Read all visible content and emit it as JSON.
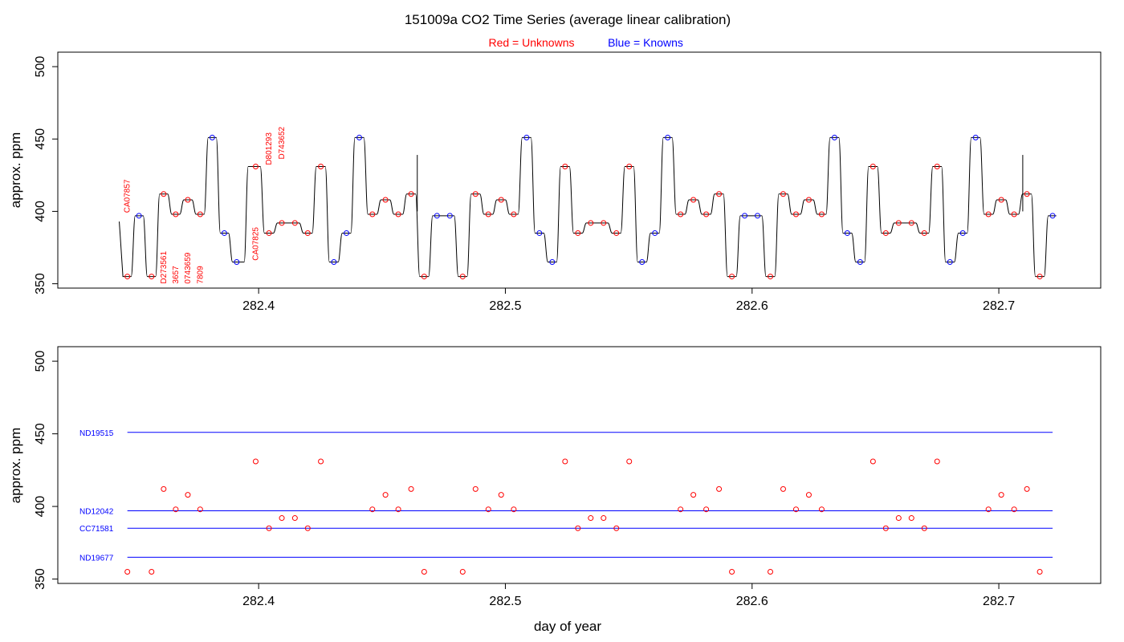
{
  "title": "151009a   CO2 Time Series (average linear calibration)",
  "legend": {
    "red_label": "Red = Unknowns",
    "blue_label": "Blue = Knowns",
    "red_color": "#ff0000",
    "blue_color": "#0000ff"
  },
  "chart_data": [
    {
      "type": "line",
      "title": "151009a   CO2 Time Series (average linear calibration)",
      "xlabel": "",
      "ylabel": "approx. ppm",
      "xlim": [
        282.3186,
        282.7413
      ],
      "ylim": [
        347,
        510
      ],
      "xticks": [
        282.4,
        282.5,
        282.6,
        282.7
      ],
      "xtick_labels": [
        "282.4",
        "282.5",
        "282.6",
        "282.7"
      ],
      "yticks": [
        350,
        400,
        450,
        500
      ],
      "ytick_labels": [
        "350",
        "400",
        "450",
        "500"
      ],
      "trace_start": 282.3435,
      "trace_end": 282.7233,
      "segments": [
        {
          "t": 282.3468,
          "v": 355,
          "c": "r"
        },
        {
          "t": 282.3515,
          "v": 397,
          "c": "b"
        },
        {
          "t": 282.3566,
          "v": 355,
          "c": "r"
        },
        {
          "t": 282.3615,
          "v": 412,
          "c": "r"
        },
        {
          "t": 282.3664,
          "v": 398,
          "c": "r"
        },
        {
          "t": 282.3713,
          "v": 408,
          "c": "r"
        },
        {
          "t": 282.3763,
          "v": 398,
          "c": "r"
        },
        {
          "t": 282.3812,
          "v": 451,
          "c": "b"
        },
        {
          "t": 282.3861,
          "v": 385,
          "c": "b"
        },
        {
          "t": 282.3911,
          "v": 365,
          "c": "b"
        },
        {
          "t": 282.3988,
          "v": 431,
          "c": "r"
        },
        {
          "t": 282.4042,
          "v": 385,
          "c": "r"
        },
        {
          "t": 282.4094,
          "v": 392,
          "c": "r"
        },
        {
          "t": 282.4147,
          "v": 392,
          "c": "r"
        },
        {
          "t": 282.4199,
          "v": 385,
          "c": "r"
        },
        {
          "t": 282.4252,
          "v": 431,
          "c": "r"
        },
        {
          "t": 282.4305,
          "v": 365,
          "c": "b"
        },
        {
          "t": 282.4356,
          "v": 385,
          "c": "b"
        },
        {
          "t": 282.4408,
          "v": 451,
          "c": "b"
        },
        {
          "t": 282.4461,
          "v": 398,
          "c": "r"
        },
        {
          "t": 282.4514,
          "v": 408,
          "c": "r"
        },
        {
          "t": 282.4566,
          "v": 398,
          "c": "r"
        },
        {
          "t": 282.4618,
          "v": 412,
          "c": "r"
        },
        {
          "t": 282.4671,
          "v": 355,
          "c": "r"
        },
        {
          "t": 282.4723,
          "v": 397,
          "c": "b"
        },
        {
          "t": 282.4775,
          "v": 397,
          "c": "b"
        },
        {
          "t": 282.4827,
          "v": 355,
          "c": "r"
        },
        {
          "t": 282.4879,
          "v": 412,
          "c": "r"
        },
        {
          "t": 282.4931,
          "v": 398,
          "c": "r"
        },
        {
          "t": 282.4983,
          "v": 408,
          "c": "r"
        },
        {
          "t": 282.5034,
          "v": 398,
          "c": "r"
        },
        {
          "t": 282.5086,
          "v": 451,
          "c": "b"
        },
        {
          "t": 282.5138,
          "v": 385,
          "c": "b"
        },
        {
          "t": 282.519,
          "v": 365,
          "c": "b"
        },
        {
          "t": 282.5242,
          "v": 431,
          "c": "r"
        },
        {
          "t": 282.5294,
          "v": 385,
          "c": "r"
        },
        {
          "t": 282.5346,
          "v": 392,
          "c": "r"
        },
        {
          "t": 282.5398,
          "v": 392,
          "c": "r"
        },
        {
          "t": 282.545,
          "v": 385,
          "c": "r"
        },
        {
          "t": 282.5502,
          "v": 431,
          "c": "r"
        },
        {
          "t": 282.5554,
          "v": 365,
          "c": "b"
        },
        {
          "t": 282.5606,
          "v": 385,
          "c": "b"
        },
        {
          "t": 282.5658,
          "v": 451,
          "c": "b"
        },
        {
          "t": 282.571,
          "v": 398,
          "c": "r"
        },
        {
          "t": 282.5762,
          "v": 408,
          "c": "r"
        },
        {
          "t": 282.5814,
          "v": 398,
          "c": "r"
        },
        {
          "t": 282.5866,
          "v": 412,
          "c": "r"
        },
        {
          "t": 282.5918,
          "v": 355,
          "c": "r"
        },
        {
          "t": 282.597,
          "v": 397,
          "c": "b"
        },
        {
          "t": 282.6022,
          "v": 397,
          "c": "b"
        },
        {
          "t": 282.6074,
          "v": 355,
          "c": "r"
        },
        {
          "t": 282.6126,
          "v": 412,
          "c": "r"
        },
        {
          "t": 282.6178,
          "v": 398,
          "c": "r"
        },
        {
          "t": 282.623,
          "v": 408,
          "c": "r"
        },
        {
          "t": 282.6282,
          "v": 398,
          "c": "r"
        },
        {
          "t": 282.6334,
          "v": 451,
          "c": "b"
        },
        {
          "t": 282.6386,
          "v": 385,
          "c": "b"
        },
        {
          "t": 282.6438,
          "v": 365,
          "c": "b"
        },
        {
          "t": 282.649,
          "v": 431,
          "c": "r"
        },
        {
          "t": 282.6542,
          "v": 385,
          "c": "r"
        },
        {
          "t": 282.6594,
          "v": 392,
          "c": "r"
        },
        {
          "t": 282.6646,
          "v": 392,
          "c": "r"
        },
        {
          "t": 282.6698,
          "v": 385,
          "c": "r"
        },
        {
          "t": 282.675,
          "v": 431,
          "c": "r"
        },
        {
          "t": 282.6802,
          "v": 365,
          "c": "b"
        },
        {
          "t": 282.6854,
          "v": 385,
          "c": "b"
        },
        {
          "t": 282.6906,
          "v": 451,
          "c": "b"
        },
        {
          "t": 282.6958,
          "v": 398,
          "c": "r"
        },
        {
          "t": 282.701,
          "v": 408,
          "c": "r"
        },
        {
          "t": 282.7062,
          "v": 398,
          "c": "r"
        },
        {
          "t": 282.7114,
          "v": 412,
          "c": "r"
        },
        {
          "t": 282.7166,
          "v": 355,
          "c": "r"
        },
        {
          "t": 282.7218,
          "v": 397,
          "c": "b"
        }
      ],
      "spikes": [
        {
          "t": 282.4643,
          "v": 439
        },
        {
          "t": 282.7097,
          "v": 439
        }
      ],
      "sample_labels": [
        {
          "text": "CA07857",
          "t": 282.3468,
          "v": 399
        },
        {
          "text": "D273561",
          "t": 282.3615,
          "v": 350
        },
        {
          "text": "3657",
          "t": 282.3664,
          "v": 350
        },
        {
          "text": "0743659",
          "t": 282.3713,
          "v": 350
        },
        {
          "text": "7809",
          "t": 282.3763,
          "v": 350
        },
        {
          "text": "CA07825",
          "t": 282.3988,
          "v": 366
        },
        {
          "text": "D801293",
          "t": 282.4042,
          "v": 432
        },
        {
          "text": "D743652",
          "t": 282.4094,
          "v": 436
        }
      ]
    },
    {
      "type": "scatter",
      "title": "",
      "xlabel": "day of year",
      "ylabel": "approx. ppm",
      "xlim": [
        282.3186,
        282.7413
      ],
      "ylim": [
        347,
        510
      ],
      "xticks": [
        282.4,
        282.5,
        282.6,
        282.7
      ],
      "xtick_labels": [
        "282.4",
        "282.5",
        "282.6",
        "282.7"
      ],
      "yticks": [
        350,
        400,
        450,
        500
      ],
      "ytick_labels": [
        "350",
        "400",
        "450",
        "500"
      ],
      "standards": [
        {
          "name": "ND19515",
          "value": 451
        },
        {
          "name": "ND12042",
          "value": 397
        },
        {
          "name": "CC71581",
          "value": 385
        },
        {
          "name": "ND19677",
          "value": 365
        }
      ],
      "standards_x": [
        282.3468,
        282.7218
      ],
      "unknowns_from": "segments of chart 0 with c = r"
    }
  ]
}
